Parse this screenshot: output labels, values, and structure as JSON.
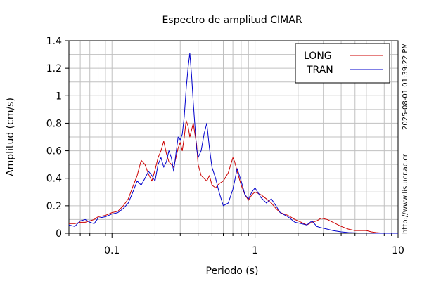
{
  "side_text": {
    "timestamp": "2025-08-01 01:39:22 PM",
    "url": "http://www.lis.ucr.ac.cr"
  },
  "chart_data": {
    "type": "line",
    "title": "Espectro de amplitud CIMAR",
    "xlabel": "Periodo (s)",
    "ylabel": "Amplitud (cm/s)",
    "x_scale": "log",
    "xlim": [
      0.05,
      10
    ],
    "ylim": [
      0,
      1.4
    ],
    "x_ticks": [
      0.1,
      1,
      10
    ],
    "x_tick_labels": [
      "0.1",
      "1",
      "10"
    ],
    "y_ticks": [
      0,
      0.2,
      0.4,
      0.6,
      0.8,
      1,
      1.2,
      1.4
    ],
    "y_tick_labels": [
      "0",
      "0.2",
      "0.4",
      "0.6",
      "0.8",
      "1",
      "1.2",
      "1.4"
    ],
    "grid": true,
    "legend_position": "top-right",
    "series": [
      {
        "name": "LONG",
        "color": "#cc0000",
        "x": [
          0.05,
          0.055,
          0.06,
          0.065,
          0.07,
          0.075,
          0.08,
          0.09,
          0.1,
          0.11,
          0.12,
          0.13,
          0.14,
          0.15,
          0.16,
          0.17,
          0.18,
          0.19,
          0.2,
          0.21,
          0.22,
          0.23,
          0.24,
          0.25,
          0.26,
          0.27,
          0.28,
          0.29,
          0.3,
          0.31,
          0.32,
          0.33,
          0.34,
          0.35,
          0.36,
          0.37,
          0.38,
          0.39,
          0.4,
          0.42,
          0.44,
          0.46,
          0.48,
          0.5,
          0.53,
          0.56,
          0.6,
          0.65,
          0.7,
          0.72,
          0.75,
          0.8,
          0.85,
          0.9,
          0.95,
          1.0,
          1.1,
          1.2,
          1.3,
          1.4,
          1.5,
          1.7,
          1.9,
          2.1,
          2.3,
          2.5,
          2.7,
          2.9,
          3.2,
          3.5,
          4.0,
          4.5,
          5.0,
          5.5,
          6.0,
          6.5,
          7.0,
          8.0,
          9.0,
          10.0
        ],
        "values": [
          0.07,
          0.07,
          0.08,
          0.08,
          0.09,
          0.1,
          0.12,
          0.13,
          0.15,
          0.16,
          0.2,
          0.25,
          0.34,
          0.42,
          0.53,
          0.5,
          0.43,
          0.38,
          0.46,
          0.55,
          0.6,
          0.67,
          0.58,
          0.52,
          0.5,
          0.48,
          0.55,
          0.62,
          0.66,
          0.6,
          0.7,
          0.82,
          0.78,
          0.7,
          0.75,
          0.8,
          0.72,
          0.65,
          0.5,
          0.42,
          0.4,
          0.38,
          0.42,
          0.35,
          0.33,
          0.36,
          0.38,
          0.44,
          0.55,
          0.52,
          0.45,
          0.35,
          0.28,
          0.24,
          0.28,
          0.3,
          0.28,
          0.25,
          0.22,
          0.18,
          0.15,
          0.13,
          0.1,
          0.08,
          0.06,
          0.08,
          0.09,
          0.11,
          0.1,
          0.08,
          0.05,
          0.03,
          0.02,
          0.02,
          0.02,
          0.01,
          0.005,
          0.0,
          0.0,
          0.0
        ]
      },
      {
        "name": "TRAN",
        "color": "#0000cc",
        "x": [
          0.05,
          0.055,
          0.06,
          0.065,
          0.07,
          0.075,
          0.08,
          0.09,
          0.1,
          0.11,
          0.12,
          0.13,
          0.14,
          0.15,
          0.16,
          0.17,
          0.18,
          0.19,
          0.2,
          0.21,
          0.22,
          0.23,
          0.24,
          0.25,
          0.26,
          0.27,
          0.28,
          0.29,
          0.3,
          0.31,
          0.32,
          0.33,
          0.34,
          0.35,
          0.36,
          0.37,
          0.38,
          0.39,
          0.4,
          0.42,
          0.44,
          0.46,
          0.48,
          0.5,
          0.53,
          0.56,
          0.6,
          0.65,
          0.7,
          0.72,
          0.75,
          0.8,
          0.85,
          0.9,
          0.95,
          1.0,
          1.1,
          1.2,
          1.3,
          1.4,
          1.5,
          1.7,
          1.9,
          2.1,
          2.3,
          2.5,
          2.7,
          2.9,
          3.2,
          3.5,
          4.0,
          4.5,
          5.0,
          5.5,
          6.0,
          6.5,
          7.0,
          8.0,
          9.0,
          10.0
        ],
        "values": [
          0.06,
          0.05,
          0.09,
          0.1,
          0.08,
          0.07,
          0.11,
          0.12,
          0.14,
          0.15,
          0.18,
          0.22,
          0.3,
          0.38,
          0.35,
          0.4,
          0.45,
          0.42,
          0.38,
          0.5,
          0.55,
          0.48,
          0.52,
          0.6,
          0.55,
          0.45,
          0.58,
          0.7,
          0.68,
          0.72,
          0.85,
          1.05,
          1.2,
          1.31,
          1.15,
          0.95,
          0.78,
          0.62,
          0.55,
          0.6,
          0.72,
          0.8,
          0.62,
          0.48,
          0.4,
          0.3,
          0.2,
          0.22,
          0.32,
          0.38,
          0.47,
          0.38,
          0.28,
          0.25,
          0.3,
          0.33,
          0.26,
          0.22,
          0.25,
          0.2,
          0.15,
          0.12,
          0.08,
          0.07,
          0.06,
          0.09,
          0.05,
          0.04,
          0.03,
          0.02,
          0.01,
          0.005,
          0.003,
          0.002,
          0.002,
          0.001,
          0.0,
          0.0,
          0.0,
          0.0
        ]
      }
    ]
  }
}
